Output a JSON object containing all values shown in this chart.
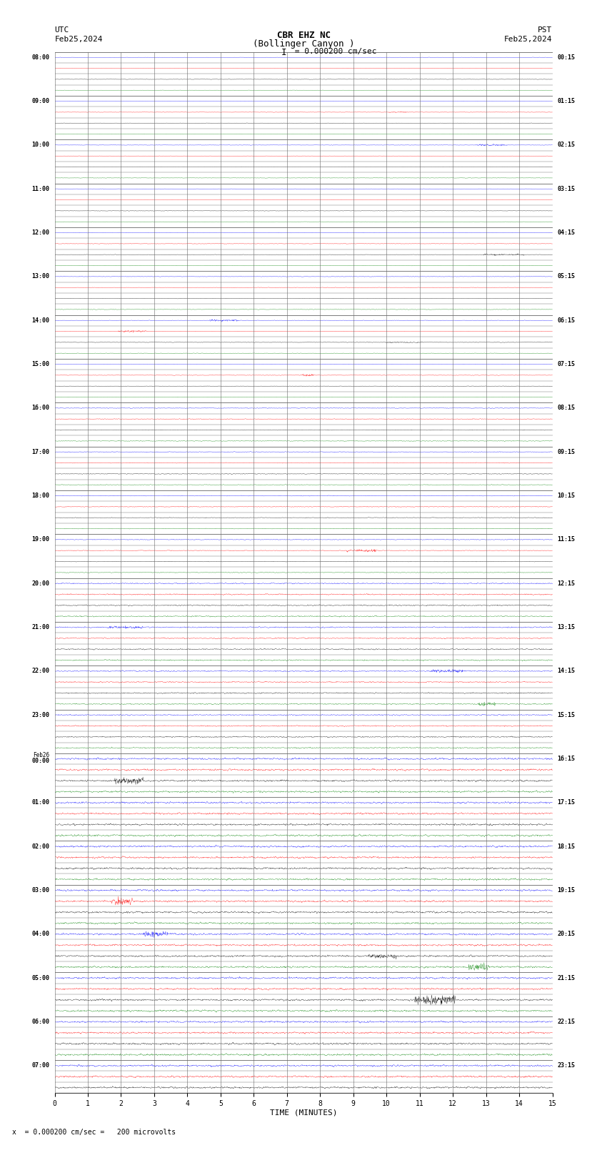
{
  "title_line1": "CBR EHZ NC",
  "title_line2": "(Bollinger Canyon )",
  "scale_label": "I = 0.000200 cm/sec",
  "left_label_top": "UTC",
  "left_label_date": "Feb25,2024",
  "right_label_top": "PST",
  "right_label_date": "Feb25,2024",
  "bottom_label": "TIME (MINUTES)",
  "footnote": "x  = 0.000200 cm/sec =   200 microvolts",
  "utc_times": [
    "08:00",
    "",
    "",
    "",
    "09:00",
    "",
    "",
    "",
    "10:00",
    "",
    "",
    "",
    "11:00",
    "",
    "",
    "",
    "12:00",
    "",
    "",
    "",
    "13:00",
    "",
    "",
    "",
    "14:00",
    "",
    "",
    "",
    "15:00",
    "",
    "",
    "",
    "16:00",
    "",
    "",
    "",
    "17:00",
    "",
    "",
    "",
    "18:00",
    "",
    "",
    "",
    "19:00",
    "",
    "",
    "",
    "20:00",
    "",
    "",
    "",
    "21:00",
    "",
    "",
    "",
    "22:00",
    "",
    "",
    "",
    "23:00",
    "",
    "",
    "",
    "Feb26\n00:00",
    "",
    "",
    "",
    "01:00",
    "",
    "",
    "",
    "02:00",
    "",
    "",
    "",
    "03:00",
    "",
    "",
    "",
    "04:00",
    "",
    "",
    "",
    "05:00",
    "",
    "",
    "",
    "06:00",
    "",
    "",
    "",
    "07:00",
    "",
    ""
  ],
  "pst_times": [
    "00:15",
    "",
    "",
    "",
    "01:15",
    "",
    "",
    "",
    "02:15",
    "",
    "",
    "",
    "03:15",
    "",
    "",
    "",
    "04:15",
    "",
    "",
    "",
    "05:15",
    "",
    "",
    "",
    "06:15",
    "",
    "",
    "",
    "07:15",
    "",
    "",
    "",
    "08:15",
    "",
    "",
    "",
    "09:15",
    "",
    "",
    "",
    "10:15",
    "",
    "",
    "",
    "11:15",
    "",
    "",
    "",
    "12:15",
    "",
    "",
    "",
    "13:15",
    "",
    "",
    "",
    "14:15",
    "",
    "",
    "",
    "15:15",
    "",
    "",
    "",
    "16:15",
    "",
    "",
    "",
    "17:15",
    "",
    "",
    "",
    "18:15",
    "",
    "",
    "",
    "19:15",
    "",
    "",
    "",
    "20:15",
    "",
    "",
    "",
    "21:15",
    "",
    "",
    "",
    "22:15",
    "",
    "",
    "",
    "23:15",
    "",
    ""
  ],
  "n_rows": 95,
  "minute_ticks": [
    0,
    1,
    2,
    3,
    4,
    5,
    6,
    7,
    8,
    9,
    10,
    11,
    12,
    13,
    14,
    15
  ],
  "colors_cycle": [
    "black",
    "red",
    "blue",
    "green"
  ],
  "bg_color": "white",
  "grid_color": "#666666",
  "fig_width": 8.5,
  "fig_height": 16.13,
  "dpi": 100
}
